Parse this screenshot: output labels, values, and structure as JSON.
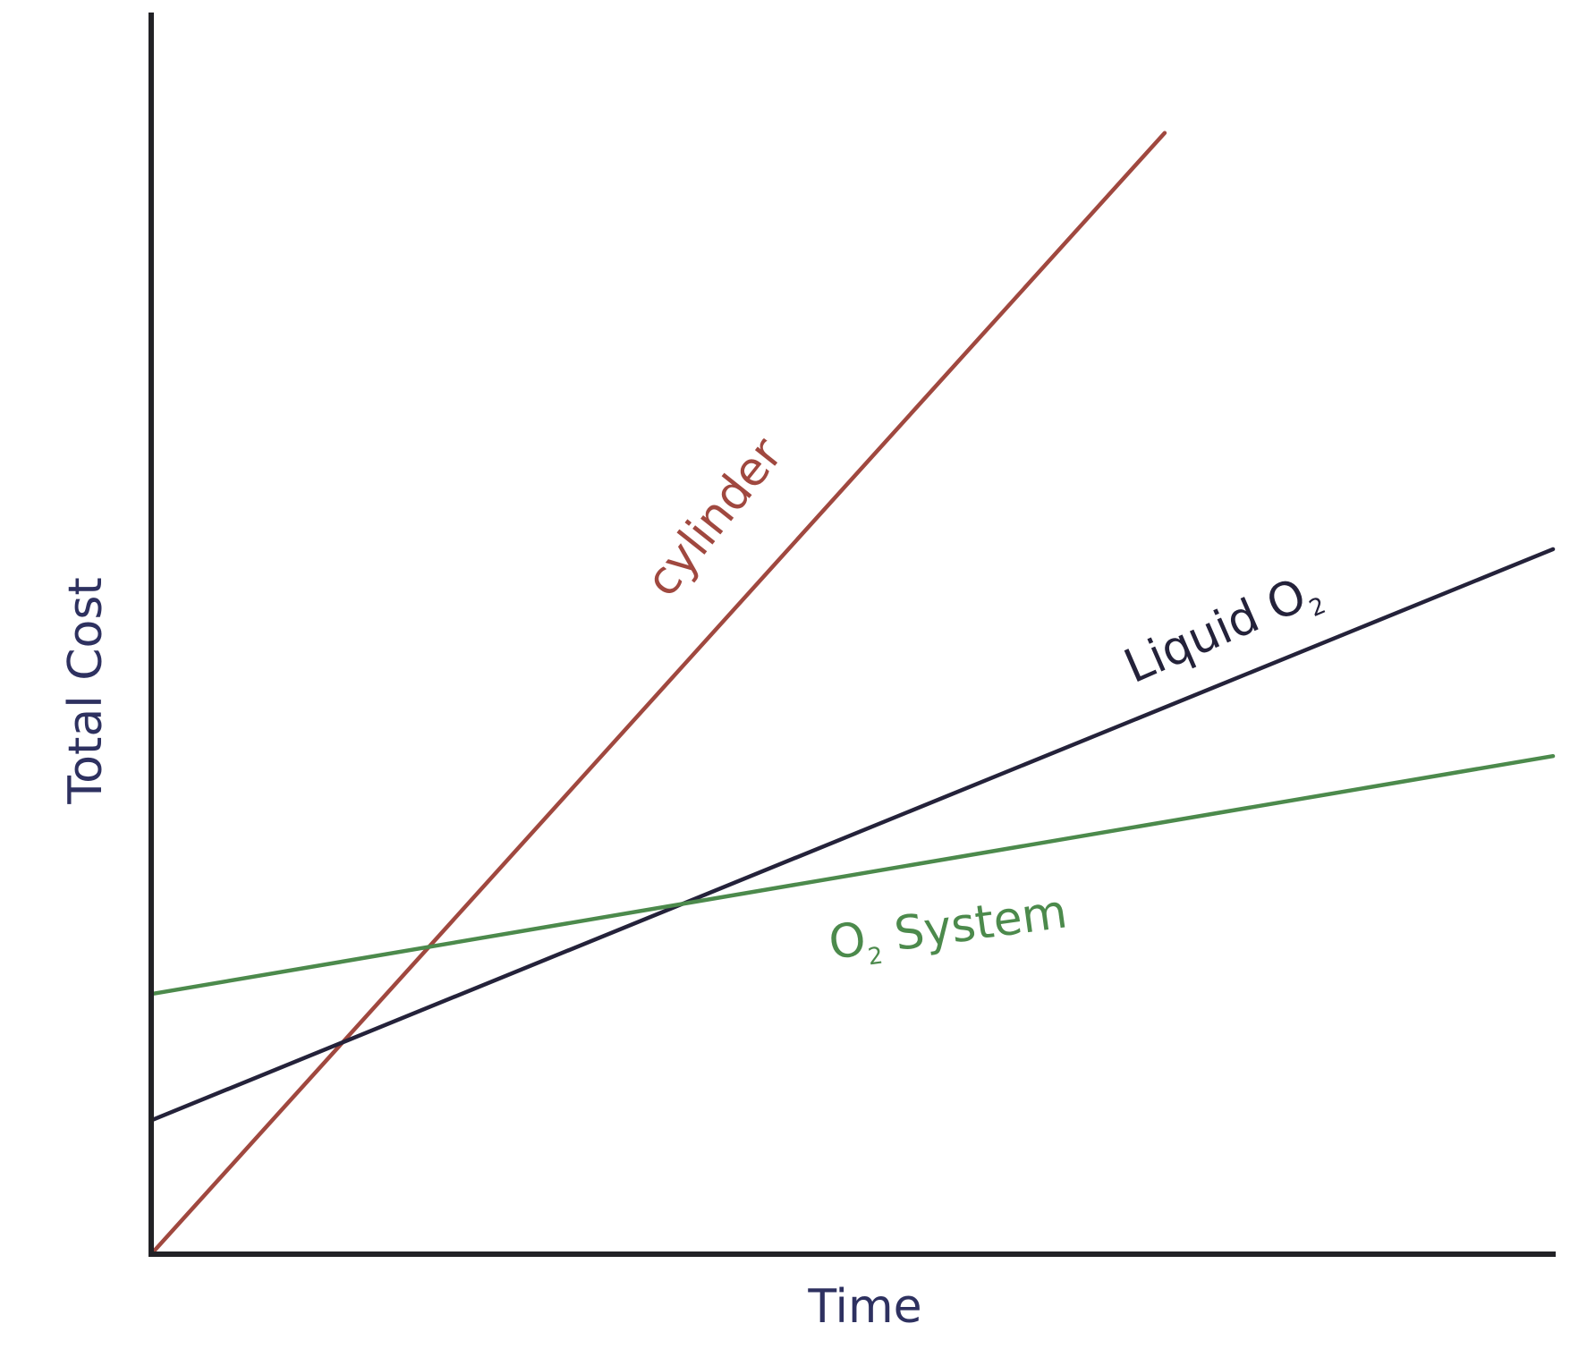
{
  "chart_data": {
    "type": "line",
    "title": "",
    "xlabel": "Time",
    "ylabel": "Total Cost",
    "xlim": [
      0,
      100
    ],
    "ylim": [
      0,
      100
    ],
    "x_ticks_shown": false,
    "y_ticks_shown": false,
    "grid": false,
    "legend": "none",
    "series": [
      {
        "name": "cylinder",
        "label_main": "cylinder",
        "label_sub": "",
        "color": "#a0483f",
        "x": [
          0,
          72.3
        ],
        "y": [
          0,
          90.5
        ]
      },
      {
        "name": "Liquid O2",
        "label_main": "Liquid O",
        "label_sub": "2",
        "color": "#24223a",
        "x": [
          0,
          100
        ],
        "y": [
          10.8,
          56.9
        ]
      },
      {
        "name": "O2 System",
        "label_main": "O",
        "label_sub": "2",
        "label_rest": " System",
        "color": "#4c8a4c",
        "x": [
          0,
          100
        ],
        "y": [
          21.0,
          40.2
        ]
      }
    ]
  }
}
